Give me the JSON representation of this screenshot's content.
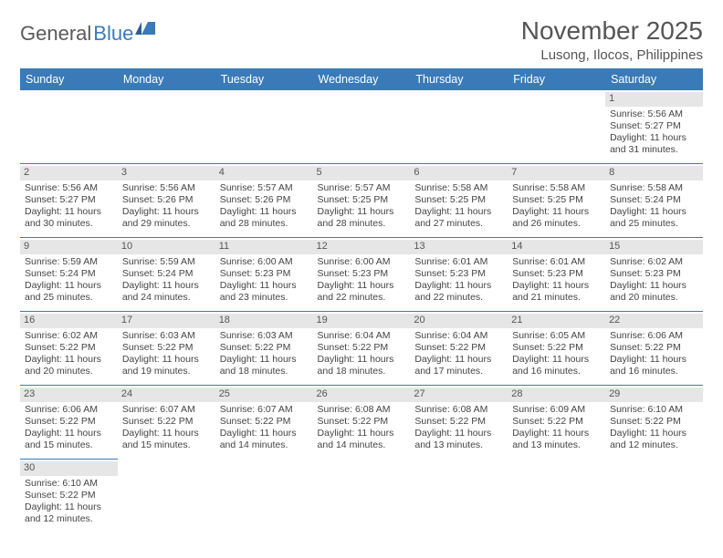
{
  "logo": {
    "word1": "General",
    "word2": "Blue"
  },
  "title": "November 2025",
  "subtitle": "Lusong, Ilocos, Philippines",
  "colors": {
    "header_bg": "#3a7ab8",
    "header_text": "#ffffff",
    "daynum_bg": "#e6e6e6",
    "border": "#3a7ab8",
    "body_text": "#444444"
  },
  "weekdays": [
    "Sunday",
    "Monday",
    "Tuesday",
    "Wednesday",
    "Thursday",
    "Friday",
    "Saturday"
  ],
  "weeks": [
    [
      null,
      null,
      null,
      null,
      null,
      null,
      {
        "n": "1",
        "sr": "Sunrise: 5:56 AM",
        "ss": "Sunset: 5:27 PM",
        "d1": "Daylight: 11 hours",
        "d2": "and 31 minutes."
      }
    ],
    [
      {
        "n": "2",
        "sr": "Sunrise: 5:56 AM",
        "ss": "Sunset: 5:27 PM",
        "d1": "Daylight: 11 hours",
        "d2": "and 30 minutes."
      },
      {
        "n": "3",
        "sr": "Sunrise: 5:56 AM",
        "ss": "Sunset: 5:26 PM",
        "d1": "Daylight: 11 hours",
        "d2": "and 29 minutes."
      },
      {
        "n": "4",
        "sr": "Sunrise: 5:57 AM",
        "ss": "Sunset: 5:26 PM",
        "d1": "Daylight: 11 hours",
        "d2": "and 28 minutes."
      },
      {
        "n": "5",
        "sr": "Sunrise: 5:57 AM",
        "ss": "Sunset: 5:25 PM",
        "d1": "Daylight: 11 hours",
        "d2": "and 28 minutes."
      },
      {
        "n": "6",
        "sr": "Sunrise: 5:58 AM",
        "ss": "Sunset: 5:25 PM",
        "d1": "Daylight: 11 hours",
        "d2": "and 27 minutes."
      },
      {
        "n": "7",
        "sr": "Sunrise: 5:58 AM",
        "ss": "Sunset: 5:25 PM",
        "d1": "Daylight: 11 hours",
        "d2": "and 26 minutes."
      },
      {
        "n": "8",
        "sr": "Sunrise: 5:58 AM",
        "ss": "Sunset: 5:24 PM",
        "d1": "Daylight: 11 hours",
        "d2": "and 25 minutes."
      }
    ],
    [
      {
        "n": "9",
        "sr": "Sunrise: 5:59 AM",
        "ss": "Sunset: 5:24 PM",
        "d1": "Daylight: 11 hours",
        "d2": "and 25 minutes."
      },
      {
        "n": "10",
        "sr": "Sunrise: 5:59 AM",
        "ss": "Sunset: 5:24 PM",
        "d1": "Daylight: 11 hours",
        "d2": "and 24 minutes."
      },
      {
        "n": "11",
        "sr": "Sunrise: 6:00 AM",
        "ss": "Sunset: 5:23 PM",
        "d1": "Daylight: 11 hours",
        "d2": "and 23 minutes."
      },
      {
        "n": "12",
        "sr": "Sunrise: 6:00 AM",
        "ss": "Sunset: 5:23 PM",
        "d1": "Daylight: 11 hours",
        "d2": "and 22 minutes."
      },
      {
        "n": "13",
        "sr": "Sunrise: 6:01 AM",
        "ss": "Sunset: 5:23 PM",
        "d1": "Daylight: 11 hours",
        "d2": "and 22 minutes."
      },
      {
        "n": "14",
        "sr": "Sunrise: 6:01 AM",
        "ss": "Sunset: 5:23 PM",
        "d1": "Daylight: 11 hours",
        "d2": "and 21 minutes."
      },
      {
        "n": "15",
        "sr": "Sunrise: 6:02 AM",
        "ss": "Sunset: 5:23 PM",
        "d1": "Daylight: 11 hours",
        "d2": "and 20 minutes."
      }
    ],
    [
      {
        "n": "16",
        "sr": "Sunrise: 6:02 AM",
        "ss": "Sunset: 5:22 PM",
        "d1": "Daylight: 11 hours",
        "d2": "and 20 minutes."
      },
      {
        "n": "17",
        "sr": "Sunrise: 6:03 AM",
        "ss": "Sunset: 5:22 PM",
        "d1": "Daylight: 11 hours",
        "d2": "and 19 minutes."
      },
      {
        "n": "18",
        "sr": "Sunrise: 6:03 AM",
        "ss": "Sunset: 5:22 PM",
        "d1": "Daylight: 11 hours",
        "d2": "and 18 minutes."
      },
      {
        "n": "19",
        "sr": "Sunrise: 6:04 AM",
        "ss": "Sunset: 5:22 PM",
        "d1": "Daylight: 11 hours",
        "d2": "and 18 minutes."
      },
      {
        "n": "20",
        "sr": "Sunrise: 6:04 AM",
        "ss": "Sunset: 5:22 PM",
        "d1": "Daylight: 11 hours",
        "d2": "and 17 minutes."
      },
      {
        "n": "21",
        "sr": "Sunrise: 6:05 AM",
        "ss": "Sunset: 5:22 PM",
        "d1": "Daylight: 11 hours",
        "d2": "and 16 minutes."
      },
      {
        "n": "22",
        "sr": "Sunrise: 6:06 AM",
        "ss": "Sunset: 5:22 PM",
        "d1": "Daylight: 11 hours",
        "d2": "and 16 minutes."
      }
    ],
    [
      {
        "n": "23",
        "sr": "Sunrise: 6:06 AM",
        "ss": "Sunset: 5:22 PM",
        "d1": "Daylight: 11 hours",
        "d2": "and 15 minutes."
      },
      {
        "n": "24",
        "sr": "Sunrise: 6:07 AM",
        "ss": "Sunset: 5:22 PM",
        "d1": "Daylight: 11 hours",
        "d2": "and 15 minutes."
      },
      {
        "n": "25",
        "sr": "Sunrise: 6:07 AM",
        "ss": "Sunset: 5:22 PM",
        "d1": "Daylight: 11 hours",
        "d2": "and 14 minutes."
      },
      {
        "n": "26",
        "sr": "Sunrise: 6:08 AM",
        "ss": "Sunset: 5:22 PM",
        "d1": "Daylight: 11 hours",
        "d2": "and 14 minutes."
      },
      {
        "n": "27",
        "sr": "Sunrise: 6:08 AM",
        "ss": "Sunset: 5:22 PM",
        "d1": "Daylight: 11 hours",
        "d2": "and 13 minutes."
      },
      {
        "n": "28",
        "sr": "Sunrise: 6:09 AM",
        "ss": "Sunset: 5:22 PM",
        "d1": "Daylight: 11 hours",
        "d2": "and 13 minutes."
      },
      {
        "n": "29",
        "sr": "Sunrise: 6:10 AM",
        "ss": "Sunset: 5:22 PM",
        "d1": "Daylight: 11 hours",
        "d2": "and 12 minutes."
      }
    ],
    [
      {
        "n": "30",
        "sr": "Sunrise: 6:10 AM",
        "ss": "Sunset: 5:22 PM",
        "d1": "Daylight: 11 hours",
        "d2": "and 12 minutes."
      },
      null,
      null,
      null,
      null,
      null,
      null
    ]
  ]
}
